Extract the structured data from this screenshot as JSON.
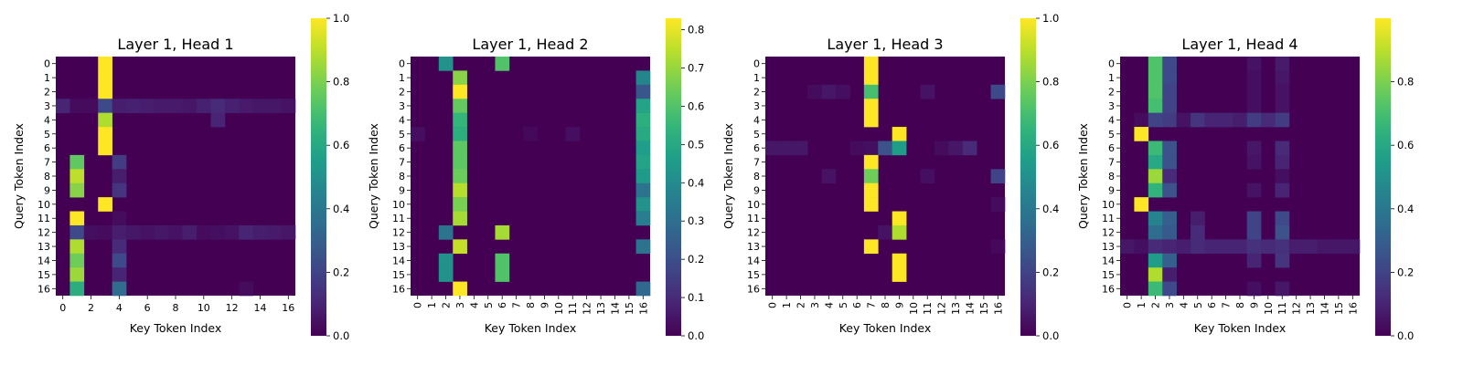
{
  "chart_data": [
    {
      "type": "heatmap",
      "title": "Layer 1, Head 1",
      "xlabel": "Key Token Index",
      "ylabel": "Query Token Index",
      "x_tick_labels": [
        "0",
        "2",
        "4",
        "6",
        "8",
        "10",
        "12",
        "14",
        "16"
      ],
      "y_tick_labels": [
        "0",
        "1",
        "2",
        "3",
        "4",
        "5",
        "6",
        "7",
        "8",
        "9",
        "10",
        "11",
        "12",
        "13",
        "14",
        "15",
        "16"
      ],
      "colorbar": {
        "min": 0,
        "max": 1.0,
        "ticks": [
          "0.0",
          "0.2",
          "0.4",
          "0.6",
          "0.8",
          "1.0"
        ],
        "tick_values": [
          0,
          0.2,
          0.4,
          0.6,
          0.8,
          1.0
        ]
      },
      "colormap": "viridis",
      "size": 17,
      "cells": [
        [
          0,
          3,
          1.0
        ],
        [
          1,
          3,
          1.0
        ],
        [
          2,
          3,
          1.0
        ],
        [
          3,
          0,
          0.1
        ],
        [
          3,
          1,
          0.03
        ],
        [
          3,
          2,
          0.03
        ],
        [
          3,
          3,
          0.22
        ],
        [
          3,
          4,
          0.08
        ],
        [
          3,
          5,
          0.09
        ],
        [
          3,
          6,
          0.08
        ],
        [
          3,
          7,
          0.07
        ],
        [
          3,
          8,
          0.07
        ],
        [
          3,
          9,
          0.06
        ],
        [
          3,
          10,
          0.09
        ],
        [
          3,
          11,
          0.12
        ],
        [
          3,
          12,
          0.09
        ],
        [
          3,
          13,
          0.07
        ],
        [
          3,
          14,
          0.06
        ],
        [
          3,
          15,
          0.06
        ],
        [
          3,
          16,
          0.05
        ],
        [
          4,
          3,
          0.88
        ],
        [
          4,
          11,
          0.1
        ],
        [
          5,
          3,
          1.0
        ],
        [
          6,
          3,
          1.0
        ],
        [
          7,
          1,
          0.75
        ],
        [
          7,
          4,
          0.18
        ],
        [
          8,
          1,
          0.9
        ],
        [
          8,
          4,
          0.08
        ],
        [
          9,
          1,
          0.82
        ],
        [
          9,
          4,
          0.15
        ],
        [
          10,
          3,
          1.0
        ],
        [
          11,
          1,
          1.0
        ],
        [
          11,
          4,
          0.03
        ],
        [
          12,
          1,
          0.22
        ],
        [
          12,
          2,
          0.04
        ],
        [
          12,
          3,
          0.03
        ],
        [
          12,
          4,
          0.08
        ],
        [
          12,
          5,
          0.06
        ],
        [
          12,
          6,
          0.05
        ],
        [
          12,
          7,
          0.06
        ],
        [
          12,
          8,
          0.05
        ],
        [
          12,
          9,
          0.08
        ],
        [
          12,
          10,
          0.03
        ],
        [
          12,
          11,
          0.04
        ],
        [
          12,
          12,
          0.05
        ],
        [
          12,
          13,
          0.1
        ],
        [
          12,
          14,
          0.08
        ],
        [
          12,
          15,
          0.07
        ],
        [
          12,
          16,
          0.06
        ],
        [
          13,
          1,
          0.88
        ],
        [
          13,
          4,
          0.12
        ],
        [
          14,
          1,
          0.78
        ],
        [
          14,
          4,
          0.22
        ],
        [
          15,
          1,
          0.85
        ],
        [
          15,
          4,
          0.1
        ],
        [
          16,
          1,
          0.62
        ],
        [
          16,
          4,
          0.35
        ],
        [
          16,
          13,
          0.03
        ]
      ]
    },
    {
      "type": "heatmap",
      "title": "Layer 1, Head 2",
      "xlabel": "Key Token Index",
      "ylabel": "Query Token Index",
      "x_tick_labels": [
        "0",
        "1",
        "2",
        "3",
        "4",
        "5",
        "6",
        "7",
        "8",
        "9",
        "10",
        "11",
        "12",
        "13",
        "14",
        "15",
        "16"
      ],
      "y_tick_labels": [
        "0",
        "1",
        "2",
        "3",
        "4",
        "5",
        "6",
        "7",
        "8",
        "9",
        "10",
        "11",
        "12",
        "13",
        "14",
        "15",
        "16"
      ],
      "colorbar": {
        "min": 0,
        "max": 0.83,
        "ticks": [
          "0.0",
          "0.1",
          "0.2",
          "0.3",
          "0.4",
          "0.5",
          "0.6",
          "0.7",
          "0.8"
        ],
        "tick_values": [
          0,
          0.1,
          0.2,
          0.3,
          0.4,
          0.5,
          0.6,
          0.7,
          0.8
        ]
      },
      "colormap": "viridis",
      "size": 17,
      "cells": [
        [
          0,
          2,
          0.42
        ],
        [
          0,
          6,
          0.6
        ],
        [
          1,
          3,
          0.68
        ],
        [
          1,
          16,
          0.38
        ],
        [
          2,
          3,
          0.83
        ],
        [
          2,
          16,
          0.22
        ],
        [
          3,
          3,
          0.63
        ],
        [
          3,
          16,
          0.48
        ],
        [
          4,
          3,
          0.55
        ],
        [
          4,
          16,
          0.52
        ],
        [
          5,
          0,
          0.03
        ],
        [
          5,
          3,
          0.52
        ],
        [
          5,
          8,
          0.02
        ],
        [
          5,
          11,
          0.03
        ],
        [
          5,
          16,
          0.5
        ],
        [
          6,
          3,
          0.62
        ],
        [
          6,
          16,
          0.46
        ],
        [
          7,
          3,
          0.62
        ],
        [
          7,
          16,
          0.48
        ],
        [
          8,
          3,
          0.64
        ],
        [
          8,
          16,
          0.45
        ],
        [
          9,
          3,
          0.74
        ],
        [
          9,
          16,
          0.32
        ],
        [
          10,
          3,
          0.66
        ],
        [
          10,
          16,
          0.42
        ],
        [
          11,
          3,
          0.72
        ],
        [
          11,
          16,
          0.35
        ],
        [
          12,
          2,
          0.32
        ],
        [
          12,
          6,
          0.72
        ],
        [
          13,
          3,
          0.76
        ],
        [
          13,
          16,
          0.32
        ],
        [
          14,
          2,
          0.42
        ],
        [
          14,
          6,
          0.6
        ],
        [
          15,
          2,
          0.42
        ],
        [
          15,
          6,
          0.6
        ],
        [
          16,
          3,
          0.83
        ],
        [
          16,
          16,
          0.28
        ]
      ]
    },
    {
      "type": "heatmap",
      "title": "Layer 1, Head 3",
      "xlabel": "Key Token Index",
      "ylabel": "Query Token Index",
      "x_tick_labels": [
        "0",
        "1",
        "2",
        "3",
        "4",
        "5",
        "6",
        "7",
        "8",
        "9",
        "10",
        "11",
        "12",
        "13",
        "14",
        "15",
        "16"
      ],
      "y_tick_labels": [
        "0",
        "1",
        "2",
        "3",
        "4",
        "5",
        "6",
        "7",
        "8",
        "9",
        "10",
        "11",
        "12",
        "13",
        "14",
        "15",
        "16"
      ],
      "colorbar": {
        "min": 0,
        "max": 1.0,
        "ticks": [
          "0.0",
          "0.2",
          "0.4",
          "0.6",
          "0.8",
          "1.0"
        ],
        "tick_values": [
          0,
          0.2,
          0.4,
          0.6,
          0.8,
          1.0
        ]
      },
      "colormap": "viridis",
      "size": 17,
      "cells": [
        [
          0,
          7,
          1.0
        ],
        [
          1,
          7,
          1.0
        ],
        [
          2,
          3,
          0.03
        ],
        [
          2,
          4,
          0.06
        ],
        [
          2,
          5,
          0.04
        ],
        [
          2,
          7,
          0.7
        ],
        [
          2,
          11,
          0.05
        ],
        [
          2,
          16,
          0.22
        ],
        [
          3,
          7,
          1.0
        ],
        [
          4,
          7,
          1.0
        ],
        [
          5,
          9,
          1.0
        ],
        [
          6,
          0,
          0.06
        ],
        [
          6,
          1,
          0.06
        ],
        [
          6,
          2,
          0.06
        ],
        [
          6,
          6,
          0.03
        ],
        [
          6,
          7,
          0.04
        ],
        [
          6,
          8,
          0.25
        ],
        [
          6,
          9,
          0.55
        ],
        [
          6,
          12,
          0.03
        ],
        [
          6,
          13,
          0.06
        ],
        [
          6,
          14,
          0.12
        ],
        [
          7,
          7,
          1.0
        ],
        [
          8,
          4,
          0.05
        ],
        [
          8,
          7,
          0.78
        ],
        [
          8,
          11,
          0.04
        ],
        [
          8,
          16,
          0.2
        ],
        [
          9,
          7,
          1.0
        ],
        [
          10,
          7,
          1.0
        ],
        [
          10,
          16,
          0.03
        ],
        [
          11,
          9,
          1.0
        ],
        [
          12,
          8,
          0.05
        ],
        [
          12,
          9,
          0.88
        ],
        [
          13,
          7,
          1.0
        ],
        [
          13,
          16,
          0.02
        ],
        [
          14,
          9,
          1.0
        ],
        [
          15,
          9,
          1.0
        ]
      ]
    },
    {
      "type": "heatmap",
      "title": "Layer 1, Head 4",
      "xlabel": "Key Token Index",
      "ylabel": "Query Token Index",
      "x_tick_labels": [
        "0",
        "1",
        "2",
        "3",
        "4",
        "5",
        "6",
        "7",
        "8",
        "9",
        "10",
        "11",
        "12",
        "13",
        "14",
        "15",
        "16"
      ],
      "y_tick_labels": [
        "0",
        "1",
        "2",
        "3",
        "4",
        "5",
        "6",
        "7",
        "8",
        "9",
        "10",
        "11",
        "12",
        "13",
        "14",
        "15",
        "16"
      ],
      "colorbar": {
        "min": 0,
        "max": 1.0,
        "ticks": [
          "0.0",
          "0.2",
          "0.4",
          "0.6",
          "0.8"
        ],
        "tick_values": [
          0,
          0.2,
          0.4,
          0.6,
          0.8
        ]
      },
      "colormap": "viridis",
      "size": 17,
      "cells": [
        [
          0,
          2,
          0.72
        ],
        [
          0,
          3,
          0.22
        ],
        [
          0,
          9,
          0.05
        ],
        [
          0,
          11,
          0.07
        ],
        [
          1,
          2,
          0.72
        ],
        [
          1,
          3,
          0.22
        ],
        [
          1,
          9,
          0.04
        ],
        [
          1,
          11,
          0.06
        ],
        [
          2,
          2,
          0.72
        ],
        [
          2,
          3,
          0.2
        ],
        [
          2,
          9,
          0.04
        ],
        [
          2,
          11,
          0.05
        ],
        [
          3,
          2,
          0.7
        ],
        [
          3,
          3,
          0.2
        ],
        [
          3,
          9,
          0.04
        ],
        [
          3,
          11,
          0.05
        ],
        [
          4,
          1,
          0.03
        ],
        [
          4,
          2,
          0.2
        ],
        [
          4,
          3,
          0.18
        ],
        [
          4,
          4,
          0.05
        ],
        [
          4,
          5,
          0.15
        ],
        [
          4,
          6,
          0.1
        ],
        [
          4,
          7,
          0.1
        ],
        [
          4,
          8,
          0.08
        ],
        [
          4,
          9,
          0.18
        ],
        [
          4,
          10,
          0.12
        ],
        [
          4,
          11,
          0.18
        ],
        [
          5,
          1,
          1.0
        ],
        [
          6,
          2,
          0.68
        ],
        [
          6,
          3,
          0.25
        ],
        [
          6,
          9,
          0.06
        ],
        [
          6,
          11,
          0.12
        ],
        [
          7,
          2,
          0.6
        ],
        [
          7,
          3,
          0.25
        ],
        [
          7,
          9,
          0.05
        ],
        [
          7,
          11,
          0.1
        ],
        [
          8,
          2,
          0.85
        ],
        [
          8,
          3,
          0.12
        ],
        [
          8,
          11,
          0.04
        ],
        [
          9,
          2,
          0.65
        ],
        [
          9,
          3,
          0.25
        ],
        [
          9,
          9,
          0.05
        ],
        [
          9,
          11,
          0.1
        ],
        [
          10,
          1,
          1.0
        ],
        [
          11,
          2,
          0.45
        ],
        [
          11,
          3,
          0.3
        ],
        [
          11,
          5,
          0.08
        ],
        [
          11,
          9,
          0.2
        ],
        [
          11,
          11,
          0.22
        ],
        [
          12,
          2,
          0.35
        ],
        [
          12,
          3,
          0.28
        ],
        [
          12,
          5,
          0.12
        ],
        [
          12,
          9,
          0.2
        ],
        [
          12,
          11,
          0.25
        ],
        [
          13,
          0,
          0.06
        ],
        [
          13,
          1,
          0.04
        ],
        [
          13,
          2,
          0.12
        ],
        [
          13,
          3,
          0.1
        ],
        [
          13,
          4,
          0.08
        ],
        [
          13,
          5,
          0.12
        ],
        [
          13,
          6,
          0.1
        ],
        [
          13,
          7,
          0.1
        ],
        [
          13,
          8,
          0.1
        ],
        [
          13,
          9,
          0.14
        ],
        [
          13,
          10,
          0.12
        ],
        [
          13,
          11,
          0.14
        ],
        [
          13,
          12,
          0.08
        ],
        [
          13,
          13,
          0.08
        ],
        [
          13,
          14,
          0.06
        ],
        [
          13,
          15,
          0.06
        ],
        [
          13,
          16,
          0.06
        ],
        [
          14,
          2,
          0.55
        ],
        [
          14,
          3,
          0.3
        ],
        [
          14,
          9,
          0.1
        ],
        [
          14,
          11,
          0.15
        ],
        [
          15,
          2,
          0.88
        ],
        [
          15,
          3,
          0.08
        ],
        [
          16,
          2,
          0.68
        ],
        [
          16,
          3,
          0.22
        ],
        [
          16,
          9,
          0.04
        ],
        [
          16,
          11,
          0.06
        ]
      ]
    }
  ]
}
